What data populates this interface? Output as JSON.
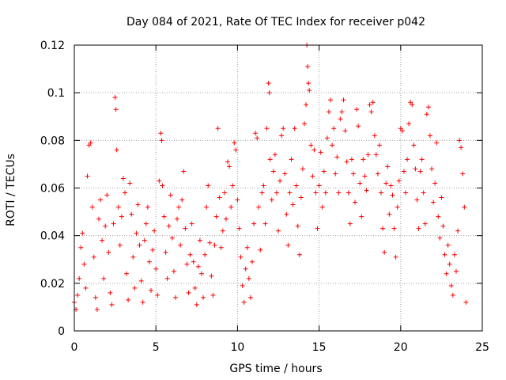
{
  "chart_data": {
    "type": "scatter",
    "title": "Day 084 of 2021, Rate Of TEC Index for receiver p042",
    "xlabel": "GPS time / hours",
    "ylabel": "ROTI / TECUs",
    "xlim": [
      0,
      25
    ],
    "ylim": [
      0,
      0.12
    ],
    "x_ticks": [
      0,
      5,
      10,
      15,
      20,
      25
    ],
    "x_tick_labels": [
      "0",
      "5",
      "10",
      "15",
      "20",
      "25"
    ],
    "y_ticks": [
      0,
      0.02,
      0.04,
      0.06,
      0.08,
      0.1,
      0.12
    ],
    "y_tick_labels": [
      "0",
      "0.02",
      "0.04",
      "0.06",
      "0.08",
      "0.1",
      "0.12"
    ],
    "grid": true,
    "marker": "+",
    "marker_color": "#ff0000",
    "series": [
      {
        "name": "ROTI",
        "color": "#ff0000",
        "points": [
          [
            0.0,
            0.012
          ],
          [
            0.1,
            0.009
          ],
          [
            0.2,
            0.015
          ],
          [
            0.3,
            0.022
          ],
          [
            0.4,
            0.035
          ],
          [
            0.5,
            0.041
          ],
          [
            0.6,
            0.028
          ],
          [
            0.7,
            0.018
          ],
          [
            0.8,
            0.065
          ],
          [
            0.9,
            0.078
          ],
          [
            1.0,
            0.079
          ],
          [
            1.1,
            0.052
          ],
          [
            1.2,
            0.031
          ],
          [
            1.3,
            0.014
          ],
          [
            1.4,
            0.009
          ],
          [
            1.5,
            0.047
          ],
          [
            1.6,
            0.055
          ],
          [
            1.7,
            0.038
          ],
          [
            1.8,
            0.022
          ],
          [
            1.9,
            0.044
          ],
          [
            2.0,
            0.057
          ],
          [
            2.1,
            0.033
          ],
          [
            2.2,
            0.016
          ],
          [
            2.3,
            0.011
          ],
          [
            2.4,
            0.045
          ],
          [
            2.5,
            0.098
          ],
          [
            2.55,
            0.093
          ],
          [
            2.6,
            0.076
          ],
          [
            2.7,
            0.052
          ],
          [
            2.8,
            0.036
          ],
          [
            2.9,
            0.048
          ],
          [
            3.0,
            0.064
          ],
          [
            3.1,
            0.058
          ],
          [
            3.2,
            0.024
          ],
          [
            3.3,
            0.013
          ],
          [
            3.4,
            0.062
          ],
          [
            3.5,
            0.049
          ],
          [
            3.6,
            0.031
          ],
          [
            3.7,
            0.018
          ],
          [
            3.8,
            0.041
          ],
          [
            3.9,
            0.053
          ],
          [
            4.0,
            0.036
          ],
          [
            4.1,
            0.021
          ],
          [
            4.2,
            0.012
          ],
          [
            4.3,
            0.038
          ],
          [
            4.4,
            0.045
          ],
          [
            4.5,
            0.052
          ],
          [
            4.6,
            0.029
          ],
          [
            4.7,
            0.017
          ],
          [
            4.8,
            0.034
          ],
          [
            4.9,
            0.042
          ],
          [
            5.0,
            0.026
          ],
          [
            5.1,
            0.015
          ],
          [
            5.2,
            0.063
          ],
          [
            5.3,
            0.083
          ],
          [
            5.35,
            0.08
          ],
          [
            5.4,
            0.061
          ],
          [
            5.5,
            0.048
          ],
          [
            5.6,
            0.033
          ],
          [
            5.7,
            0.022
          ],
          [
            5.8,
            0.044
          ],
          [
            5.9,
            0.057
          ],
          [
            6.0,
            0.039
          ],
          [
            6.1,
            0.025
          ],
          [
            6.2,
            0.014
          ],
          [
            6.3,
            0.047
          ],
          [
            6.4,
            0.052
          ],
          [
            6.5,
            0.036
          ],
          [
            6.6,
            0.055
          ],
          [
            6.7,
            0.067
          ],
          [
            6.8,
            0.043
          ],
          [
            6.9,
            0.028
          ],
          [
            7.0,
            0.016
          ],
          [
            7.1,
            0.032
          ],
          [
            7.2,
            0.045
          ],
          [
            7.3,
            0.029
          ],
          [
            7.4,
            0.018
          ],
          [
            7.5,
            0.011
          ],
          [
            7.6,
            0.027
          ],
          [
            7.7,
            0.038
          ],
          [
            7.8,
            0.024
          ],
          [
            7.9,
            0.014
          ],
          [
            8.0,
            0.032
          ],
          [
            8.1,
            0.052
          ],
          [
            8.2,
            0.061
          ],
          [
            8.3,
            0.037
          ],
          [
            8.4,
            0.023
          ],
          [
            8.5,
            0.015
          ],
          [
            8.6,
            0.036
          ],
          [
            8.7,
            0.048
          ],
          [
            8.8,
            0.085
          ],
          [
            8.9,
            0.056
          ],
          [
            9.0,
            0.035
          ],
          [
            9.1,
            0.042
          ],
          [
            9.2,
            0.058
          ],
          [
            9.3,
            0.047
          ],
          [
            9.4,
            0.071
          ],
          [
            9.5,
            0.069
          ],
          [
            9.6,
            0.052
          ],
          [
            9.7,
            0.061
          ],
          [
            9.8,
            0.079
          ],
          [
            9.9,
            0.076
          ],
          [
            10.0,
            0.055
          ],
          [
            10.1,
            0.043
          ],
          [
            10.2,
            0.031
          ],
          [
            10.3,
            0.019
          ],
          [
            10.4,
            0.012
          ],
          [
            10.5,
            0.026
          ],
          [
            10.6,
            0.035
          ],
          [
            10.7,
            0.022
          ],
          [
            10.8,
            0.014
          ],
          [
            10.9,
            0.029
          ],
          [
            11.0,
            0.045
          ],
          [
            11.1,
            0.083
          ],
          [
            11.2,
            0.081
          ],
          [
            11.3,
            0.052
          ],
          [
            11.4,
            0.034
          ],
          [
            11.5,
            0.058
          ],
          [
            11.6,
            0.061
          ],
          [
            11.7,
            0.045
          ],
          [
            11.8,
            0.085
          ],
          [
            11.9,
            0.104
          ],
          [
            11.95,
            0.1
          ],
          [
            12.0,
            0.072
          ],
          [
            12.1,
            0.055
          ],
          [
            12.2,
            0.067
          ],
          [
            12.3,
            0.074
          ],
          [
            12.4,
            0.058
          ],
          [
            12.5,
            0.042
          ],
          [
            12.6,
            0.063
          ],
          [
            12.7,
            0.082
          ],
          [
            12.8,
            0.085
          ],
          [
            12.9,
            0.066
          ],
          [
            13.0,
            0.049
          ],
          [
            13.1,
            0.036
          ],
          [
            13.2,
            0.058
          ],
          [
            13.3,
            0.072
          ],
          [
            13.4,
            0.053
          ],
          [
            13.5,
            0.085
          ],
          [
            13.6,
            0.061
          ],
          [
            13.7,
            0.044
          ],
          [
            13.8,
            0.032
          ],
          [
            13.9,
            0.056
          ],
          [
            14.0,
            0.068
          ],
          [
            14.1,
            0.087
          ],
          [
            14.2,
            0.095
          ],
          [
            14.25,
            0.12
          ],
          [
            14.3,
            0.111
          ],
          [
            14.35,
            0.104
          ],
          [
            14.4,
            0.101
          ],
          [
            14.5,
            0.078
          ],
          [
            14.6,
            0.065
          ],
          [
            14.7,
            0.076
          ],
          [
            14.8,
            0.058
          ],
          [
            14.9,
            0.043
          ],
          [
            15.0,
            0.061
          ],
          [
            15.1,
            0.075
          ],
          [
            15.2,
            0.052
          ],
          [
            15.3,
            0.067
          ],
          [
            15.4,
            0.058
          ],
          [
            15.5,
            0.081
          ],
          [
            15.6,
            0.092
          ],
          [
            15.7,
            0.097
          ],
          [
            15.8,
            0.078
          ],
          [
            15.9,
            0.085
          ],
          [
            16.0,
            0.066
          ],
          [
            16.1,
            0.073
          ],
          [
            16.2,
            0.058
          ],
          [
            16.3,
            0.089
          ],
          [
            16.4,
            0.092
          ],
          [
            16.5,
            0.097
          ],
          [
            16.6,
            0.084
          ],
          [
            16.7,
            0.071
          ],
          [
            16.8,
            0.058
          ],
          [
            16.9,
            0.045
          ],
          [
            17.0,
            0.072
          ],
          [
            17.1,
            0.066
          ],
          [
            17.2,
            0.054
          ],
          [
            17.3,
            0.093
          ],
          [
            17.4,
            0.086
          ],
          [
            17.5,
            0.062
          ],
          [
            17.6,
            0.048
          ],
          [
            17.7,
            0.072
          ],
          [
            17.8,
            0.065
          ],
          [
            17.9,
            0.059
          ],
          [
            18.0,
            0.074
          ],
          [
            18.1,
            0.095
          ],
          [
            18.2,
            0.092
          ],
          [
            18.3,
            0.096
          ],
          [
            18.4,
            0.082
          ],
          [
            18.5,
            0.074
          ],
          [
            18.6,
            0.066
          ],
          [
            18.7,
            0.078
          ],
          [
            18.8,
            0.058
          ],
          [
            18.9,
            0.043
          ],
          [
            19.0,
            0.033
          ],
          [
            19.1,
            0.062
          ],
          [
            19.2,
            0.069
          ],
          [
            19.3,
            0.049
          ],
          [
            19.4,
            0.061
          ],
          [
            19.5,
            0.057
          ],
          [
            19.6,
            0.043
          ],
          [
            19.7,
            0.031
          ],
          [
            19.8,
            0.052
          ],
          [
            19.9,
            0.063
          ],
          [
            20.0,
            0.085
          ],
          [
            20.1,
            0.084
          ],
          [
            20.2,
            0.067
          ],
          [
            20.3,
            0.058
          ],
          [
            20.4,
            0.072
          ],
          [
            20.5,
            0.087
          ],
          [
            20.6,
            0.096
          ],
          [
            20.7,
            0.095
          ],
          [
            20.8,
            0.078
          ],
          [
            20.9,
            0.068
          ],
          [
            21.0,
            0.055
          ],
          [
            21.1,
            0.043
          ],
          [
            21.2,
            0.067
          ],
          [
            21.3,
            0.072
          ],
          [
            21.4,
            0.058
          ],
          [
            21.5,
            0.045
          ],
          [
            21.6,
            0.091
          ],
          [
            21.7,
            0.094
          ],
          [
            21.8,
            0.082
          ],
          [
            21.9,
            0.068
          ],
          [
            22.0,
            0.054
          ],
          [
            22.1,
            0.062
          ],
          [
            22.2,
            0.079
          ],
          [
            22.3,
            0.048
          ],
          [
            22.4,
            0.039
          ],
          [
            22.5,
            0.056
          ],
          [
            22.6,
            0.044
          ],
          [
            22.7,
            0.032
          ],
          [
            22.8,
            0.024
          ],
          [
            22.9,
            0.036
          ],
          [
            23.0,
            0.028
          ],
          [
            23.1,
            0.019
          ],
          [
            23.2,
            0.015
          ],
          [
            23.3,
            0.032
          ],
          [
            23.4,
            0.025
          ],
          [
            23.5,
            0.042
          ],
          [
            23.6,
            0.08
          ],
          [
            23.7,
            0.077
          ],
          [
            23.8,
            0.066
          ],
          [
            23.9,
            0.052
          ],
          [
            24.0,
            0.012
          ]
        ]
      }
    ]
  }
}
